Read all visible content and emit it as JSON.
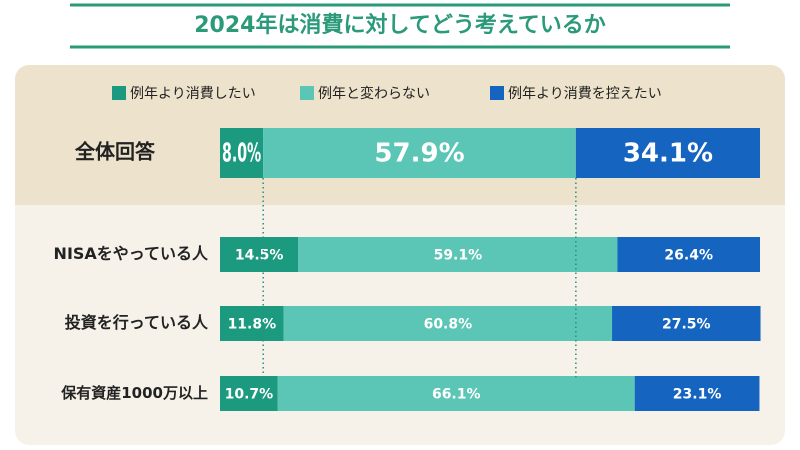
{
  "chart_data": {
    "type": "stacked-barh",
    "title": "2024年は消費に対してどう考えているか",
    "categories": [
      "全体回答",
      "NISAをやっている人",
      "投資を行っている人",
      "保有資産1000万以上"
    ],
    "xlim": [
      0,
      100
    ],
    "legend": "top",
    "series": [
      {
        "name": "例年より消費したい",
        "color": "#1b9a7f",
        "values": [
          8.0,
          14.5,
          11.8,
          10.7
        ],
        "value_labels": [
          "8.0%",
          "14.5%",
          "11.8%",
          "10.7%"
        ]
      },
      {
        "name": "例年と変わらない",
        "color": "#5cc6b6",
        "values": [
          57.9,
          59.1,
          60.8,
          66.1
        ],
        "value_labels": [
          "57.9%",
          "59.1%",
          "60.8%",
          "66.1%"
        ]
      },
      {
        "name": "例年より消費を控えたい",
        "color": "#1565c0",
        "values": [
          34.1,
          26.4,
          27.5,
          23.1
        ],
        "value_labels": [
          "34.1%",
          "26.4%",
          "27.5%",
          "23.1%"
        ]
      }
    ]
  }
}
